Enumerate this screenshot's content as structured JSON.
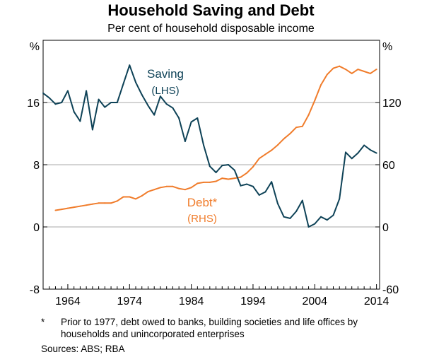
{
  "header": {
    "title": "Household Saving and Debt",
    "subtitle": "Per cent of household disposable income"
  },
  "footnote": {
    "marker": "*",
    "text": "Prior to 1977, debt owed to banks, building societies and life offices by households and unincorporated enterprises",
    "sources": "Sources: ABS; RBA"
  },
  "chart_data": {
    "type": "line",
    "title": "Household Saving and Debt",
    "subtitle": "Per cent of household disposable income",
    "left_axis": {
      "unit": "%",
      "ylim": [
        -8,
        24
      ],
      "ticks": [
        -8,
        0,
        8,
        16
      ]
    },
    "right_axis": {
      "unit": "%",
      "ylim": [
        -60,
        180
      ],
      "ticks": [
        -60,
        0,
        60,
        120
      ]
    },
    "xlim": [
      1960,
      2014.5
    ],
    "xticks": [
      1964,
      1974,
      1984,
      1994,
      2004,
      2014
    ],
    "grid": "horizontal",
    "colors": {
      "saving": "#0e4257",
      "debt": "#f07c2b",
      "grid": "#aaaaaa"
    },
    "series": [
      {
        "name": "Saving",
        "axis": "left",
        "label_lines": [
          "Saving",
          "(LHS)"
        ],
        "x": [
          1960,
          1961,
          1962,
          1963,
          1964,
          1965,
          1966,
          1967,
          1968,
          1969,
          1970,
          1971,
          1972,
          1973,
          1974,
          1975,
          1976,
          1977,
          1978,
          1979,
          1980,
          1981,
          1982,
          1983,
          1984,
          1985,
          1986,
          1987,
          1988,
          1989,
          1990,
          1991,
          1992,
          1993,
          1994,
          1995,
          1996,
          1997,
          1998,
          1999,
          2000,
          2001,
          2002,
          2003,
          2004,
          2005,
          2006,
          2007,
          2008,
          2009,
          2010,
          2011,
          2012,
          2013,
          2014
        ],
        "values": [
          17.2,
          16.6,
          15.8,
          16.0,
          17.5,
          14.8,
          13.6,
          17.5,
          12.5,
          16.4,
          15.4,
          16.0,
          16.0,
          18.4,
          20.8,
          18.6,
          17.0,
          15.6,
          14.4,
          16.8,
          15.8,
          15.3,
          14.0,
          11.0,
          13.5,
          14.0,
          10.5,
          7.8,
          7.0,
          7.9,
          8.0,
          7.3,
          5.3,
          5.5,
          5.2,
          4.1,
          4.5,
          5.8,
          3.0,
          1.3,
          1.1,
          2.0,
          3.4,
          0.0,
          0.4,
          1.3,
          0.9,
          1.5,
          3.6,
          9.6,
          8.8,
          9.5,
          10.5,
          9.9,
          9.5
        ]
      },
      {
        "name": "Debt*",
        "axis": "right",
        "label_lines": [
          "Debt*",
          "(RHS)"
        ],
        "x": [
          1962,
          1963,
          1964,
          1965,
          1966,
          1967,
          1968,
          1969,
          1970,
          1971,
          1972,
          1973,
          1974,
          1975,
          1976,
          1977,
          1978,
          1979,
          1980,
          1981,
          1982,
          1983,
          1984,
          1985,
          1986,
          1987,
          1988,
          1989,
          1990,
          1991,
          1992,
          1993,
          1994,
          1995,
          1996,
          1997,
          1998,
          1999,
          2000,
          2001,
          2002,
          2003,
          2004,
          2005,
          2006,
          2007,
          2008,
          2009,
          2010,
          2011,
          2012,
          2013,
          2014
        ],
        "values": [
          16,
          17,
          18,
          19,
          20,
          21,
          22,
          23,
          23,
          23,
          25,
          29,
          29,
          27,
          30,
          34,
          36,
          38,
          39,
          39,
          37,
          36,
          38,
          42,
          43,
          43,
          44,
          47,
          46,
          47,
          48,
          52,
          58,
          66,
          70,
          74,
          79,
          85,
          90,
          96,
          97,
          108,
          122,
          137,
          147,
          153,
          155,
          152,
          148,
          152,
          150,
          148,
          152
        ]
      }
    ]
  }
}
